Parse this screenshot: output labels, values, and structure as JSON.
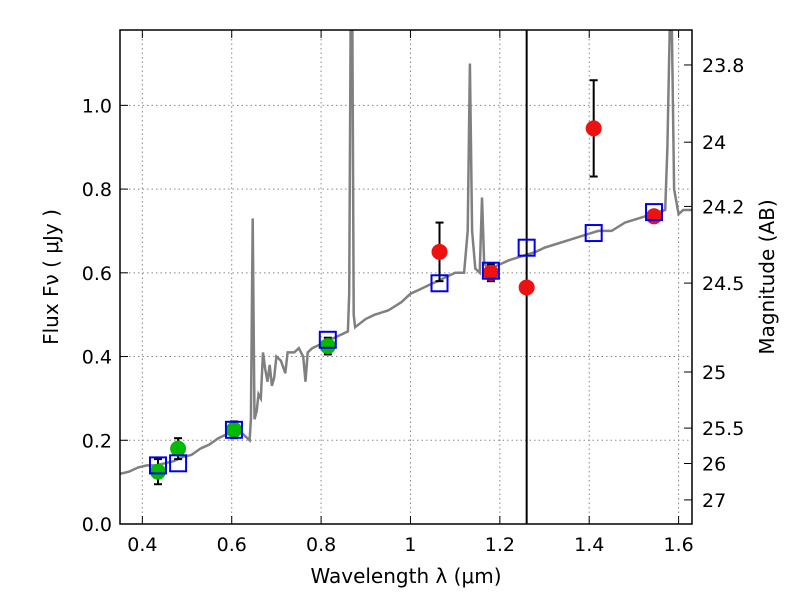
{
  "chart_data": {
    "type": "scatter",
    "xlabel": "Wavelength  λ (μm)",
    "ylabel": "Flux  Fν  ( μJy )",
    "ylabel_right": "Magnitude (AB)",
    "xlim": [
      0.35,
      1.63
    ],
    "ylim": [
      0.0,
      1.18
    ],
    "grid": true,
    "x_ticks": [
      {
        "v": 0.4,
        "label": "0.4"
      },
      {
        "v": 0.6,
        "label": "0.6"
      },
      {
        "v": 0.8,
        "label": "0.8"
      },
      {
        "v": 1.0,
        "label": "1"
      },
      {
        "v": 1.2,
        "label": "1.2"
      },
      {
        "v": 1.4,
        "label": "1.4"
      },
      {
        "v": 1.6,
        "label": "1.6"
      }
    ],
    "y_ticks": [
      {
        "v": 0.0,
        "label": "0.0"
      },
      {
        "v": 0.2,
        "label": "0.2"
      },
      {
        "v": 0.4,
        "label": "0.4"
      },
      {
        "v": 0.6,
        "label": "0.6"
      },
      {
        "v": 0.8,
        "label": "0.8"
      },
      {
        "v": 1.0,
        "label": "1.0"
      }
    ],
    "mag_ticks": [
      {
        "mag": 23.8,
        "label": "23.8"
      },
      {
        "mag": 24.0,
        "label": "24"
      },
      {
        "mag": 24.2,
        "label": "24.2"
      },
      {
        "mag": 24.5,
        "label": "24.5"
      },
      {
        "mag": 25.0,
        "label": "25"
      },
      {
        "mag": 25.5,
        "label": "25.5"
      },
      {
        "mag": 26.0,
        "label": "26"
      },
      {
        "mag": 27.0,
        "label": "27"
      }
    ],
    "vertical_line_x": 1.26,
    "colors": {
      "spectrum": "#808080",
      "green_points": "#00bb00",
      "red_points": "#ee1111",
      "model_boxes": "#0000ee",
      "vline": "#000000",
      "grid": "#888888"
    },
    "spectrum": [
      [
        0.35,
        0.12
      ],
      [
        0.37,
        0.125
      ],
      [
        0.39,
        0.135
      ],
      [
        0.41,
        0.14
      ],
      [
        0.43,
        0.14
      ],
      [
        0.45,
        0.145
      ],
      [
        0.47,
        0.15
      ],
      [
        0.49,
        0.16
      ],
      [
        0.51,
        0.165
      ],
      [
        0.53,
        0.18
      ],
      [
        0.55,
        0.19
      ],
      [
        0.57,
        0.205
      ],
      [
        0.59,
        0.215
      ],
      [
        0.61,
        0.22
      ],
      [
        0.625,
        0.215
      ],
      [
        0.635,
        0.205
      ],
      [
        0.64,
        0.2
      ],
      [
        0.643,
        0.25
      ],
      [
        0.647,
        0.73
      ],
      [
        0.651,
        0.25
      ],
      [
        0.656,
        0.27
      ],
      [
        0.66,
        0.31
      ],
      [
        0.665,
        0.3
      ],
      [
        0.67,
        0.41
      ],
      [
        0.675,
        0.37
      ],
      [
        0.68,
        0.34
      ],
      [
        0.685,
        0.38
      ],
      [
        0.69,
        0.33
      ],
      [
        0.695,
        0.35
      ],
      [
        0.7,
        0.4
      ],
      [
        0.71,
        0.39
      ],
      [
        0.72,
        0.36
      ],
      [
        0.725,
        0.41
      ],
      [
        0.74,
        0.41
      ],
      [
        0.75,
        0.42
      ],
      [
        0.76,
        0.4
      ],
      [
        0.765,
        0.34
      ],
      [
        0.77,
        0.41
      ],
      [
        0.78,
        0.42
      ],
      [
        0.8,
        0.43
      ],
      [
        0.82,
        0.44
      ],
      [
        0.84,
        0.45
      ],
      [
        0.86,
        0.46
      ],
      [
        0.863,
        0.55
      ],
      [
        0.866,
        1.18
      ],
      [
        0.87,
        1.18
      ],
      [
        0.873,
        0.5
      ],
      [
        0.876,
        0.47
      ],
      [
        0.9,
        0.49
      ],
      [
        0.92,
        0.5
      ],
      [
        0.95,
        0.51
      ],
      [
        0.98,
        0.53
      ],
      [
        1.0,
        0.55
      ],
      [
        1.02,
        0.56
      ],
      [
        1.04,
        0.57
      ],
      [
        1.06,
        0.58
      ],
      [
        1.08,
        0.59
      ],
      [
        1.1,
        0.6
      ],
      [
        1.12,
        0.6
      ],
      [
        1.128,
        0.7
      ],
      [
        1.133,
        1.1
      ],
      [
        1.138,
        0.7
      ],
      [
        1.145,
        0.61
      ],
      [
        1.155,
        0.6
      ],
      [
        1.16,
        0.78
      ],
      [
        1.165,
        0.62
      ],
      [
        1.18,
        0.61
      ],
      [
        1.2,
        0.62
      ],
      [
        1.22,
        0.63
      ],
      [
        1.25,
        0.64
      ],
      [
        1.28,
        0.65
      ],
      [
        1.3,
        0.66
      ],
      [
        1.33,
        0.67
      ],
      [
        1.36,
        0.68
      ],
      [
        1.39,
        0.69
      ],
      [
        1.42,
        0.7
      ],
      [
        1.45,
        0.7
      ],
      [
        1.48,
        0.72
      ],
      [
        1.51,
        0.73
      ],
      [
        1.54,
        0.74
      ],
      [
        1.57,
        0.75
      ],
      [
        1.575,
        0.9
      ],
      [
        1.58,
        1.18
      ],
      [
        1.585,
        1.18
      ],
      [
        1.59,
        0.8
      ],
      [
        1.6,
        0.74
      ],
      [
        1.61,
        0.75
      ],
      [
        1.63,
        0.75
      ]
    ],
    "green_points": [
      {
        "x": 0.435,
        "y": 0.125,
        "err": 0.03
      },
      {
        "x": 0.48,
        "y": 0.18,
        "err": 0.025
      },
      {
        "x": 0.605,
        "y": 0.225,
        "err": 0.02
      },
      {
        "x": 0.815,
        "y": 0.425,
        "err": 0.02
      }
    ],
    "red_points": [
      {
        "x": 1.065,
        "y": 0.65,
        "err": 0.07
      },
      {
        "x": 1.18,
        "y": 0.6,
        "err": 0.02
      },
      {
        "x": 1.26,
        "y": 0.565,
        "err": 0.0
      },
      {
        "x": 1.41,
        "y": 0.945,
        "err": 0.115
      },
      {
        "x": 1.545,
        "y": 0.735,
        "err": 0.0
      }
    ],
    "model_boxes": [
      {
        "x": 0.435,
        "y": 0.14
      },
      {
        "x": 0.48,
        "y": 0.145
      },
      {
        "x": 0.605,
        "y": 0.225
      },
      {
        "x": 0.815,
        "y": 0.44
      },
      {
        "x": 1.065,
        "y": 0.575
      },
      {
        "x": 1.18,
        "y": 0.605
      },
      {
        "x": 1.26,
        "y": 0.66
      },
      {
        "x": 1.41,
        "y": 0.695
      },
      {
        "x": 1.545,
        "y": 0.745
      }
    ]
  }
}
